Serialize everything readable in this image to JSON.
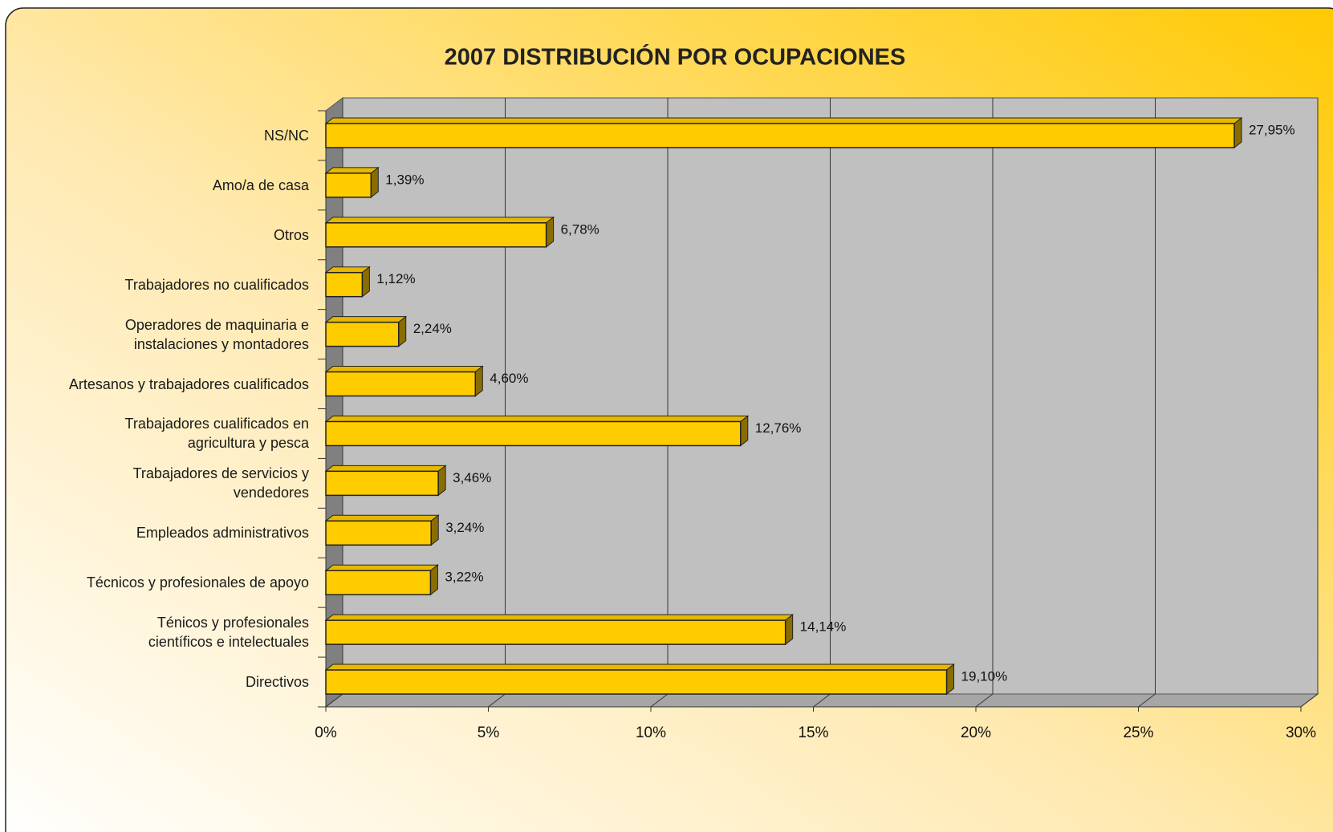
{
  "chart_data": {
    "type": "bar",
    "orientation": "horizontal",
    "title": "2007 DISTRIBUCIÓN POR OCUPACIONES",
    "categories": [
      "NS/NC",
      "Amo/a de casa",
      "Otros",
      "Trabajadores no cualificados",
      "Operadores de maquinaria e\ninstalaciones y montadores",
      "Artesanos y trabajadores cualificados",
      "Trabajadores cualificados en\nagricultura y pesca",
      "Trabajadores de servicios y\nvendedores",
      "Empleados administrativos",
      "Técnicos y profesionales de apoyo",
      "Ténicos y profesionales\ncientíficos e intelectuales",
      "Directivos"
    ],
    "values": [
      27.95,
      1.39,
      6.78,
      1.12,
      2.24,
      4.6,
      12.76,
      3.46,
      3.24,
      3.22,
      14.14,
      19.1
    ],
    "value_labels": [
      "27,95%",
      "1,39%",
      "6,78%",
      "1,12%",
      "2,24%",
      "4,60%",
      "12,76%",
      "3,46%",
      "3,24%",
      "3,22%",
      "14,14%",
      "19,10%"
    ],
    "color": "#ffcc00",
    "xlim": [
      0,
      30
    ],
    "xticks": [
      {
        "value": 0,
        "label": "0%"
      },
      {
        "value": 5,
        "label": "5%"
      },
      {
        "value": 10,
        "label": "10%"
      },
      {
        "value": 15,
        "label": "15%"
      },
      {
        "value": 20,
        "label": "20%"
      },
      {
        "value": 25,
        "label": "25%"
      },
      {
        "value": 30,
        "label": "30%"
      }
    ],
    "grid": true
  }
}
